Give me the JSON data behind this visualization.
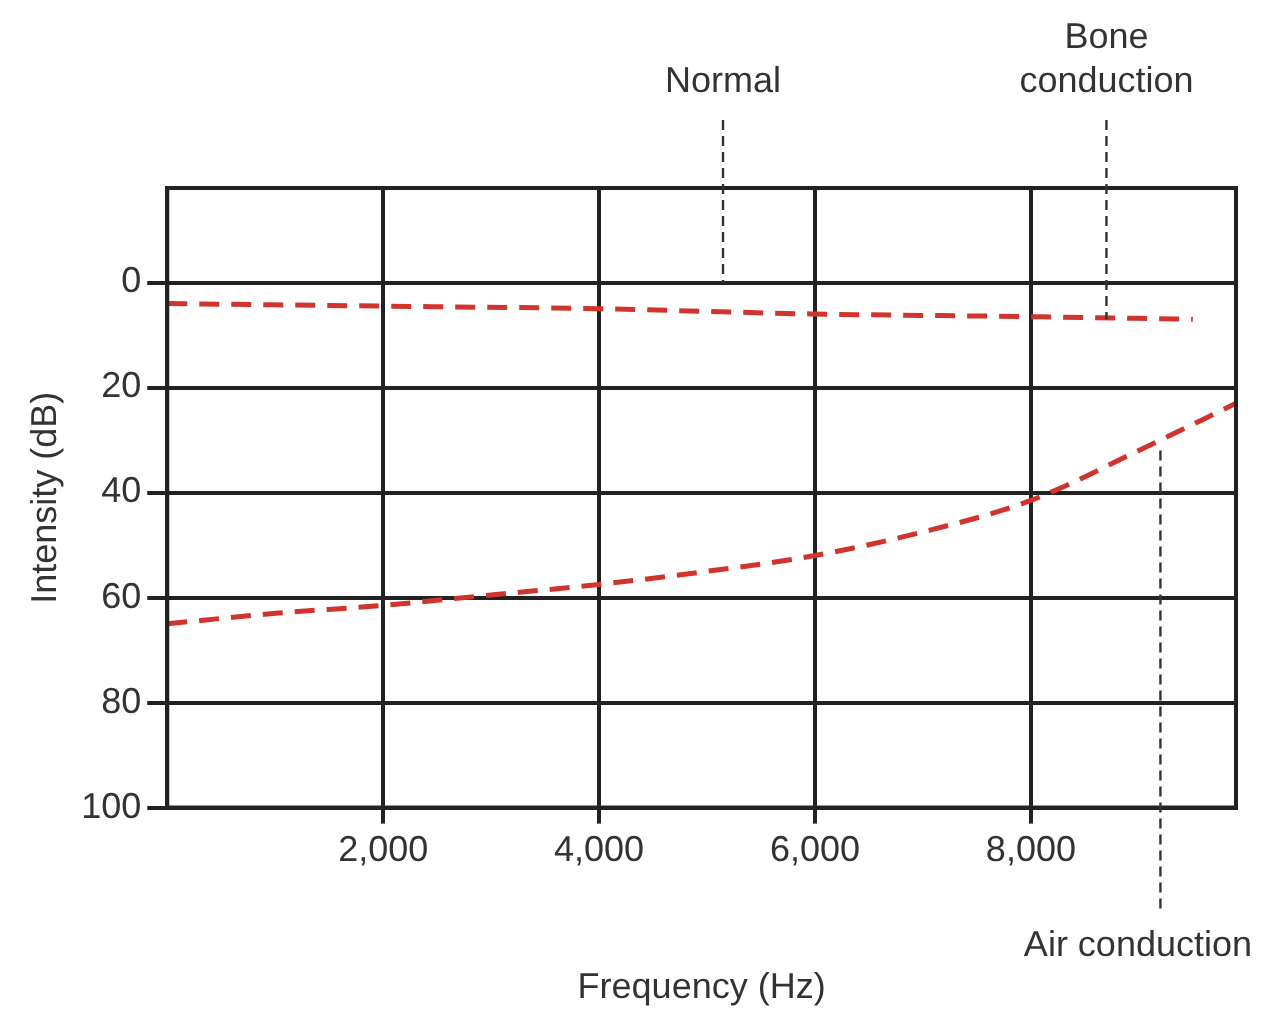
{
  "chart_data": {
    "type": "line",
    "xlabel": "Frequency (Hz)",
    "ylabel": "Intensity (dB)",
    "xlim": [
      0,
      9900
    ],
    "xticks": [
      {
        "value": 2000,
        "label": "2,000"
      },
      {
        "value": 4000,
        "label": "4,000"
      },
      {
        "value": 6000,
        "label": "6,000"
      },
      {
        "value": 8000,
        "label": "8,000"
      }
    ],
    "ylim": [
      100,
      -18
    ],
    "yticks": [
      0,
      20,
      40,
      60,
      80,
      100
    ],
    "grid": true,
    "legend": false,
    "marker": "none",
    "line_style": "dashed",
    "series": [
      {
        "color": "#d0342c",
        "x": [
          0,
          2000,
          4000,
          6000,
          8000,
          9500
        ],
        "values": [
          4,
          4.5,
          5,
          6,
          6.5,
          7
        ]
      },
      {
        "color": "#d0342c",
        "x": [
          0,
          1000,
          2000,
          3000,
          4000,
          5000,
          6000,
          7000,
          8000,
          9000,
          9900
        ],
        "values": [
          65,
          63,
          61.5,
          59.5,
          57.5,
          55,
          52,
          47.5,
          41.5,
          32,
          23
        ]
      }
    ],
    "annotations": [
      "Normal",
      {
        "text": "Bone conduction",
        "x": 8700,
        "y": 7
      },
      {
        "text": "Air conduction",
        "x": 9200,
        "y": 32
      }
    ]
  }
}
